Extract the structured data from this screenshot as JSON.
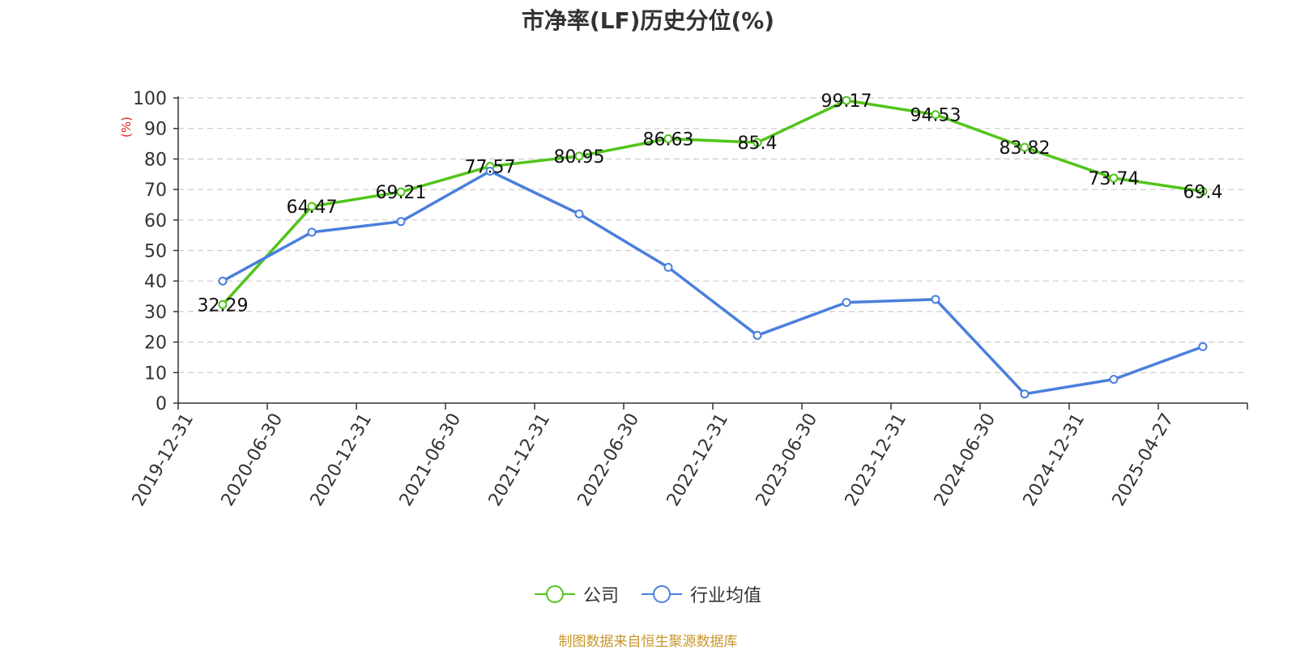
{
  "chart_data": {
    "type": "line",
    "title": "市净率(LF)历史分位(%)",
    "ylabel": "(%)",
    "ylim": [
      0,
      100
    ],
    "yticks": [
      0,
      10,
      20,
      30,
      40,
      50,
      60,
      70,
      80,
      90,
      100
    ],
    "grid": true,
    "legend_position": "bottom",
    "categories": [
      "2019-12-31",
      "2020-06-30",
      "2020-12-31",
      "2021-06-30",
      "2021-12-31",
      "2022-06-30",
      "2022-12-31",
      "2023-06-30",
      "2023-12-31",
      "2024-06-30",
      "2024-12-31",
      "2025-04-27"
    ],
    "series": [
      {
        "name": "公司",
        "color": "#52c41a",
        "show_labels": true,
        "values": [
          32.29,
          64.47,
          69.21,
          77.57,
          80.95,
          86.63,
          85.4,
          99.17,
          94.53,
          83.82,
          73.74,
          69.4
        ]
      },
      {
        "name": "行业均值",
        "color": "#4a7fdc",
        "show_labels": false,
        "values": [
          40.0,
          56.0,
          59.5,
          76.0,
          62.0,
          44.5,
          22.2,
          33.0,
          34.0,
          3.0,
          7.8,
          18.5
        ]
      }
    ]
  },
  "source": "制图数据来自恒生聚源数据库"
}
